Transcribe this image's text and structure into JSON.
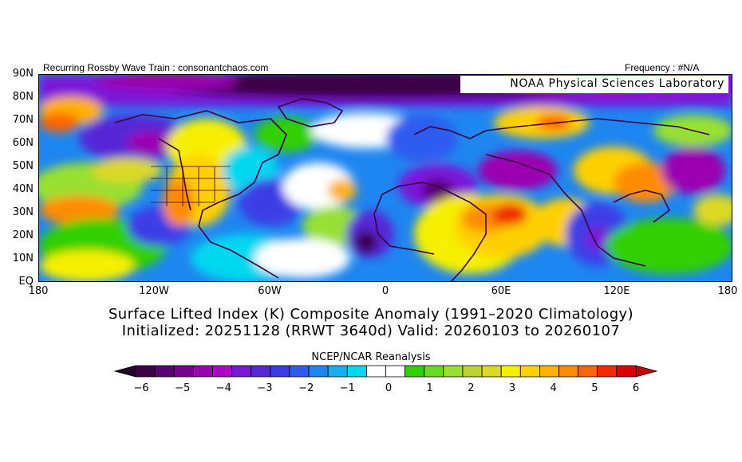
{
  "header": {
    "left": "Recurring Rossby Wave Train : consonantchaos.com",
    "right": "Frequency : #N/A",
    "lab": "NOAA Physical Sciences Laboratory"
  },
  "axes": {
    "lat_labels": [
      "90N",
      "80N",
      "70N",
      "60N",
      "50N",
      "40N",
      "30N",
      "20N",
      "10N",
      "EQ"
    ],
    "lon_labels": [
      "180",
      "120W",
      "60W",
      "0",
      "60E",
      "120E",
      "180"
    ]
  },
  "caption": {
    "line1": "Surface Lifted Index (K) Composite Anomaly (1991–2020 Climatology)",
    "line2": "Initialized: 20251128 (RRWT 3640d) Valid: 20260103 to 20260107",
    "source": "NCEP/NCAR Reanalysis"
  },
  "colorbar": {
    "labels": [
      "−6",
      "−5",
      "−4",
      "−3",
      "−2",
      "−1",
      "0",
      "1",
      "2",
      "3",
      "4",
      "5",
      "6"
    ],
    "colors": [
      "#3d0044",
      "#5a0070",
      "#7a0090",
      "#9b00b0",
      "#b000c8",
      "#7b18d8",
      "#5628d6",
      "#3c3ce6",
      "#2f5cf0",
      "#1e86f0",
      "#16b0ee",
      "#00d8f0",
      "#ffffff",
      "#ffffff",
      "#30d000",
      "#68da20",
      "#98e030",
      "#bcd430",
      "#dcd828",
      "#f6f000",
      "#ffd000",
      "#ffb000",
      "#ff8c00",
      "#ff6400",
      "#f02c00",
      "#d80000"
    ],
    "under_color": "#22002a",
    "over_color": "#c00000"
  }
}
